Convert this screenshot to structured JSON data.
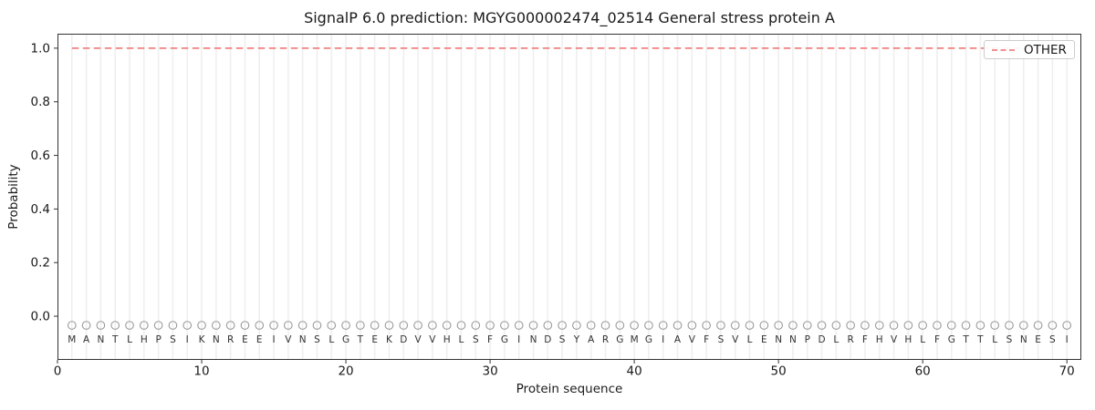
{
  "figure": {
    "title": "SignalP 6.0 prediction: MGYG000002474_02514 General stress protein A",
    "xlabel": "Protein sequence",
    "ylabel": "Probability"
  },
  "chart_data": {
    "type": "line",
    "title": "SignalP 6.0 prediction: MGYG000002474_02514 General stress protein A",
    "xlabel": "Protein sequence",
    "ylabel": "Probability",
    "xlim": [
      0,
      71
    ],
    "ylim": [
      -0.163,
      1.054
    ],
    "xtick_values": [
      0,
      10,
      20,
      30,
      40,
      50,
      60,
      70
    ],
    "xtick_labels": [
      "0",
      "10",
      "20",
      "30",
      "40",
      "50",
      "60",
      "70"
    ],
    "ytick_values": [
      0.0,
      0.2,
      0.4,
      0.6,
      0.8,
      1.0
    ],
    "ytick_labels": [
      "0.0",
      "0.2",
      "0.4",
      "0.6",
      "0.8",
      "1.0"
    ],
    "grid": "vertical-line-per-residue",
    "sequence": "MANTLHPSIKNREEIVNSLGTEKDVVHLSFGINDSYARGMGIAVFSVLENNPDLRFHVHLFGTTLSNESI",
    "sequence_length": 70,
    "series": [
      {
        "name": "OTHER",
        "linestyle": "dashed",
        "color": "#f08080",
        "x_start": 1,
        "x_end": 70,
        "constant_value": 1.0
      }
    ],
    "residue_markers": {
      "shape": "open-circle",
      "y_value": -0.034,
      "color": "#9a9a9a"
    },
    "residue_letters_y_value": -0.085,
    "legend": {
      "position": "upper right",
      "entries": [
        {
          "label": "OTHER",
          "color": "#f08080",
          "linestyle": "dashed"
        }
      ]
    }
  },
  "colors": {
    "line_other": "#f08080",
    "gridline": "#efefef",
    "frame": "#333333",
    "tick_text": "#1a1a1a",
    "residue_letter": "#333333",
    "marker_stroke": "#9a9a9a",
    "legend_border": "#cccccc",
    "background": "#ffffff"
  }
}
